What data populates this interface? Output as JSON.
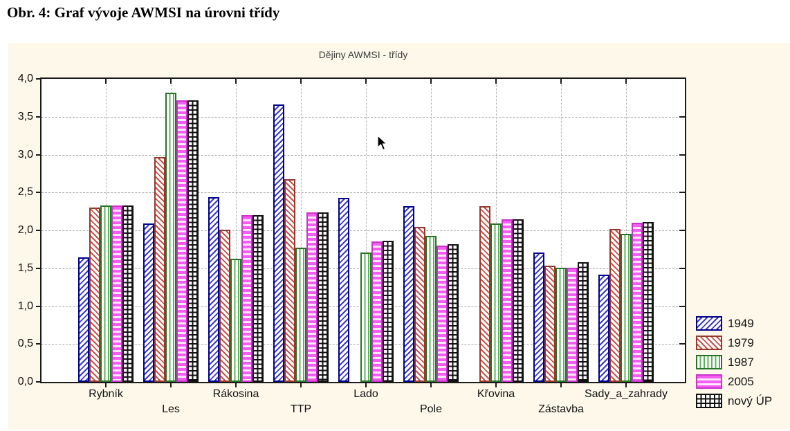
{
  "caption": "Obr. 4: Graf vývoje AWMSI na úrovni třídy",
  "chart_data": {
    "type": "bar",
    "title": "Dějiny AWMSI - třídy",
    "categories": [
      "Rybník",
      "Les",
      "Rákosina",
      "TTP",
      "Lado",
      "Pole",
      "Křovina",
      "Zástavba",
      "Sady_a_zahrady"
    ],
    "series": [
      {
        "name": "1949",
        "pattern": "diagonal-up",
        "line_color": "#3a3ab8",
        "border_color": "#00008b",
        "values": [
          1.64,
          2.09,
          2.44,
          3.66,
          2.43,
          2.32,
          null,
          1.71,
          1.42
        ]
      },
      {
        "name": "1979",
        "pattern": "diagonal-down",
        "line_color": "#c4524a",
        "border_color": "#96382a",
        "values": [
          2.3,
          2.97,
          2.01,
          2.68,
          null,
          2.05,
          2.32,
          1.53,
          2.02
        ]
      },
      {
        "name": "1987",
        "pattern": "vertical",
        "line_color": "#5ab55a",
        "border_color": "#267326",
        "values": [
          2.33,
          3.82,
          1.63,
          1.77,
          1.71,
          1.93,
          2.09,
          1.51,
          1.95
        ]
      },
      {
        "name": "2005",
        "pattern": "horizontal",
        "line_color": "#f25ef2",
        "border_color": "#cc33cc",
        "values": [
          2.33,
          3.72,
          2.2,
          2.24,
          1.85,
          1.8,
          2.15,
          1.51,
          2.1
        ]
      },
      {
        "name": "nový ÚP",
        "pattern": "grid",
        "line_color": "#111111",
        "border_color": "#111111",
        "values": [
          2.33,
          3.72,
          2.2,
          2.24,
          1.86,
          1.82,
          2.15,
          1.58,
          2.11
        ]
      }
    ],
    "ylim": [
      0,
      4
    ],
    "ytick_step": 0.5,
    "ytick_labels": [
      "0,0",
      "0,5",
      "1,0",
      "1,5",
      "2,0",
      "2,5",
      "3,0",
      "3,5",
      "4,0"
    ],
    "grid": {
      "horizontal": "dashed",
      "vertical": "dotted"
    },
    "legend_position": "right-bottom",
    "xlabel": "",
    "ylabel": ""
  },
  "colors": {
    "page_bg": "#ffffff",
    "panel_bg": "#fdf8ea",
    "plot_bg": "#ffffff",
    "axis": "#1a1a1a",
    "gridline": "#a8a8a8",
    "title_text": "#3d3d3d",
    "label_text": "#111111"
  }
}
